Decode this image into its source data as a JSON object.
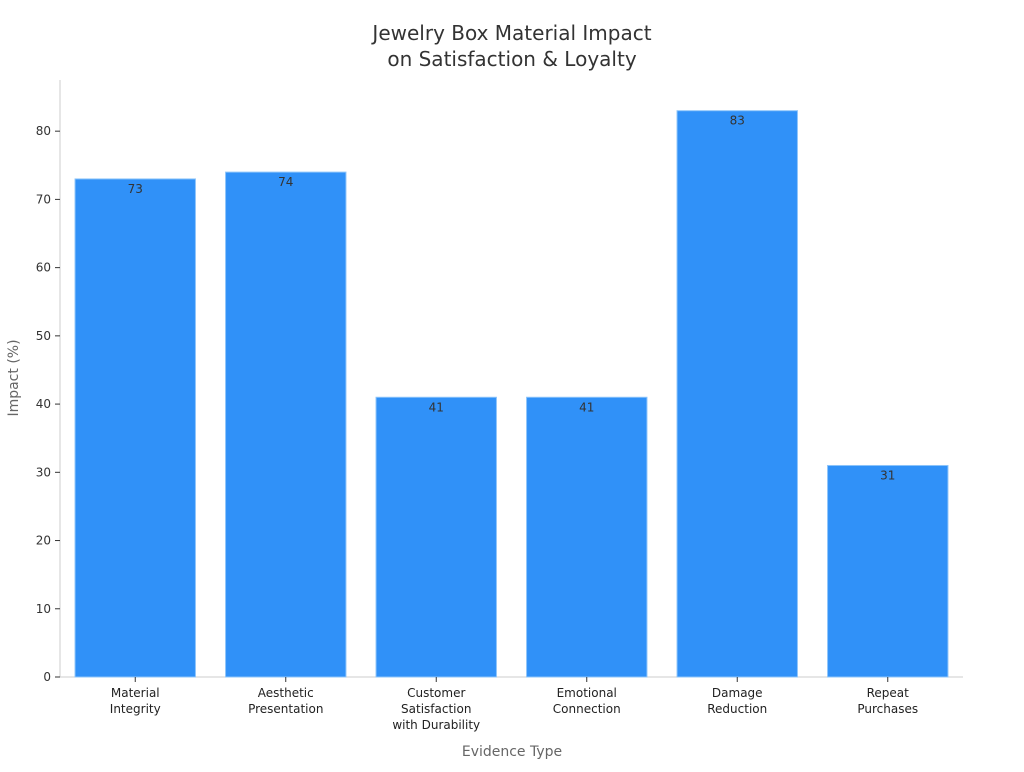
{
  "chart_data": {
    "type": "bar",
    "title": [
      "Jewelry Box Material Impact",
      "on Satisfaction & Loyalty"
    ],
    "xlabel": "Evidence Type",
    "ylabel": "Impact (%)",
    "categories": [
      [
        "Material",
        "Integrity"
      ],
      [
        "Aesthetic",
        "Presentation"
      ],
      [
        "Customer",
        "Satisfaction",
        "with Durability"
      ],
      [
        "Emotional",
        "Connection"
      ],
      [
        "Damage",
        "Reduction"
      ],
      [
        "Repeat",
        "Purchases"
      ]
    ],
    "values": [
      73,
      74,
      41,
      41,
      83,
      31
    ],
    "ylim": [
      0,
      87.5
    ],
    "yticks": [
      0,
      10,
      20,
      30,
      40,
      50,
      60,
      70,
      80
    ],
    "grid": false,
    "colors": {
      "bar": "#3091f8",
      "bar_edge": "#8cc4fa",
      "axis": "#cccccc",
      "text": "#333333"
    }
  }
}
